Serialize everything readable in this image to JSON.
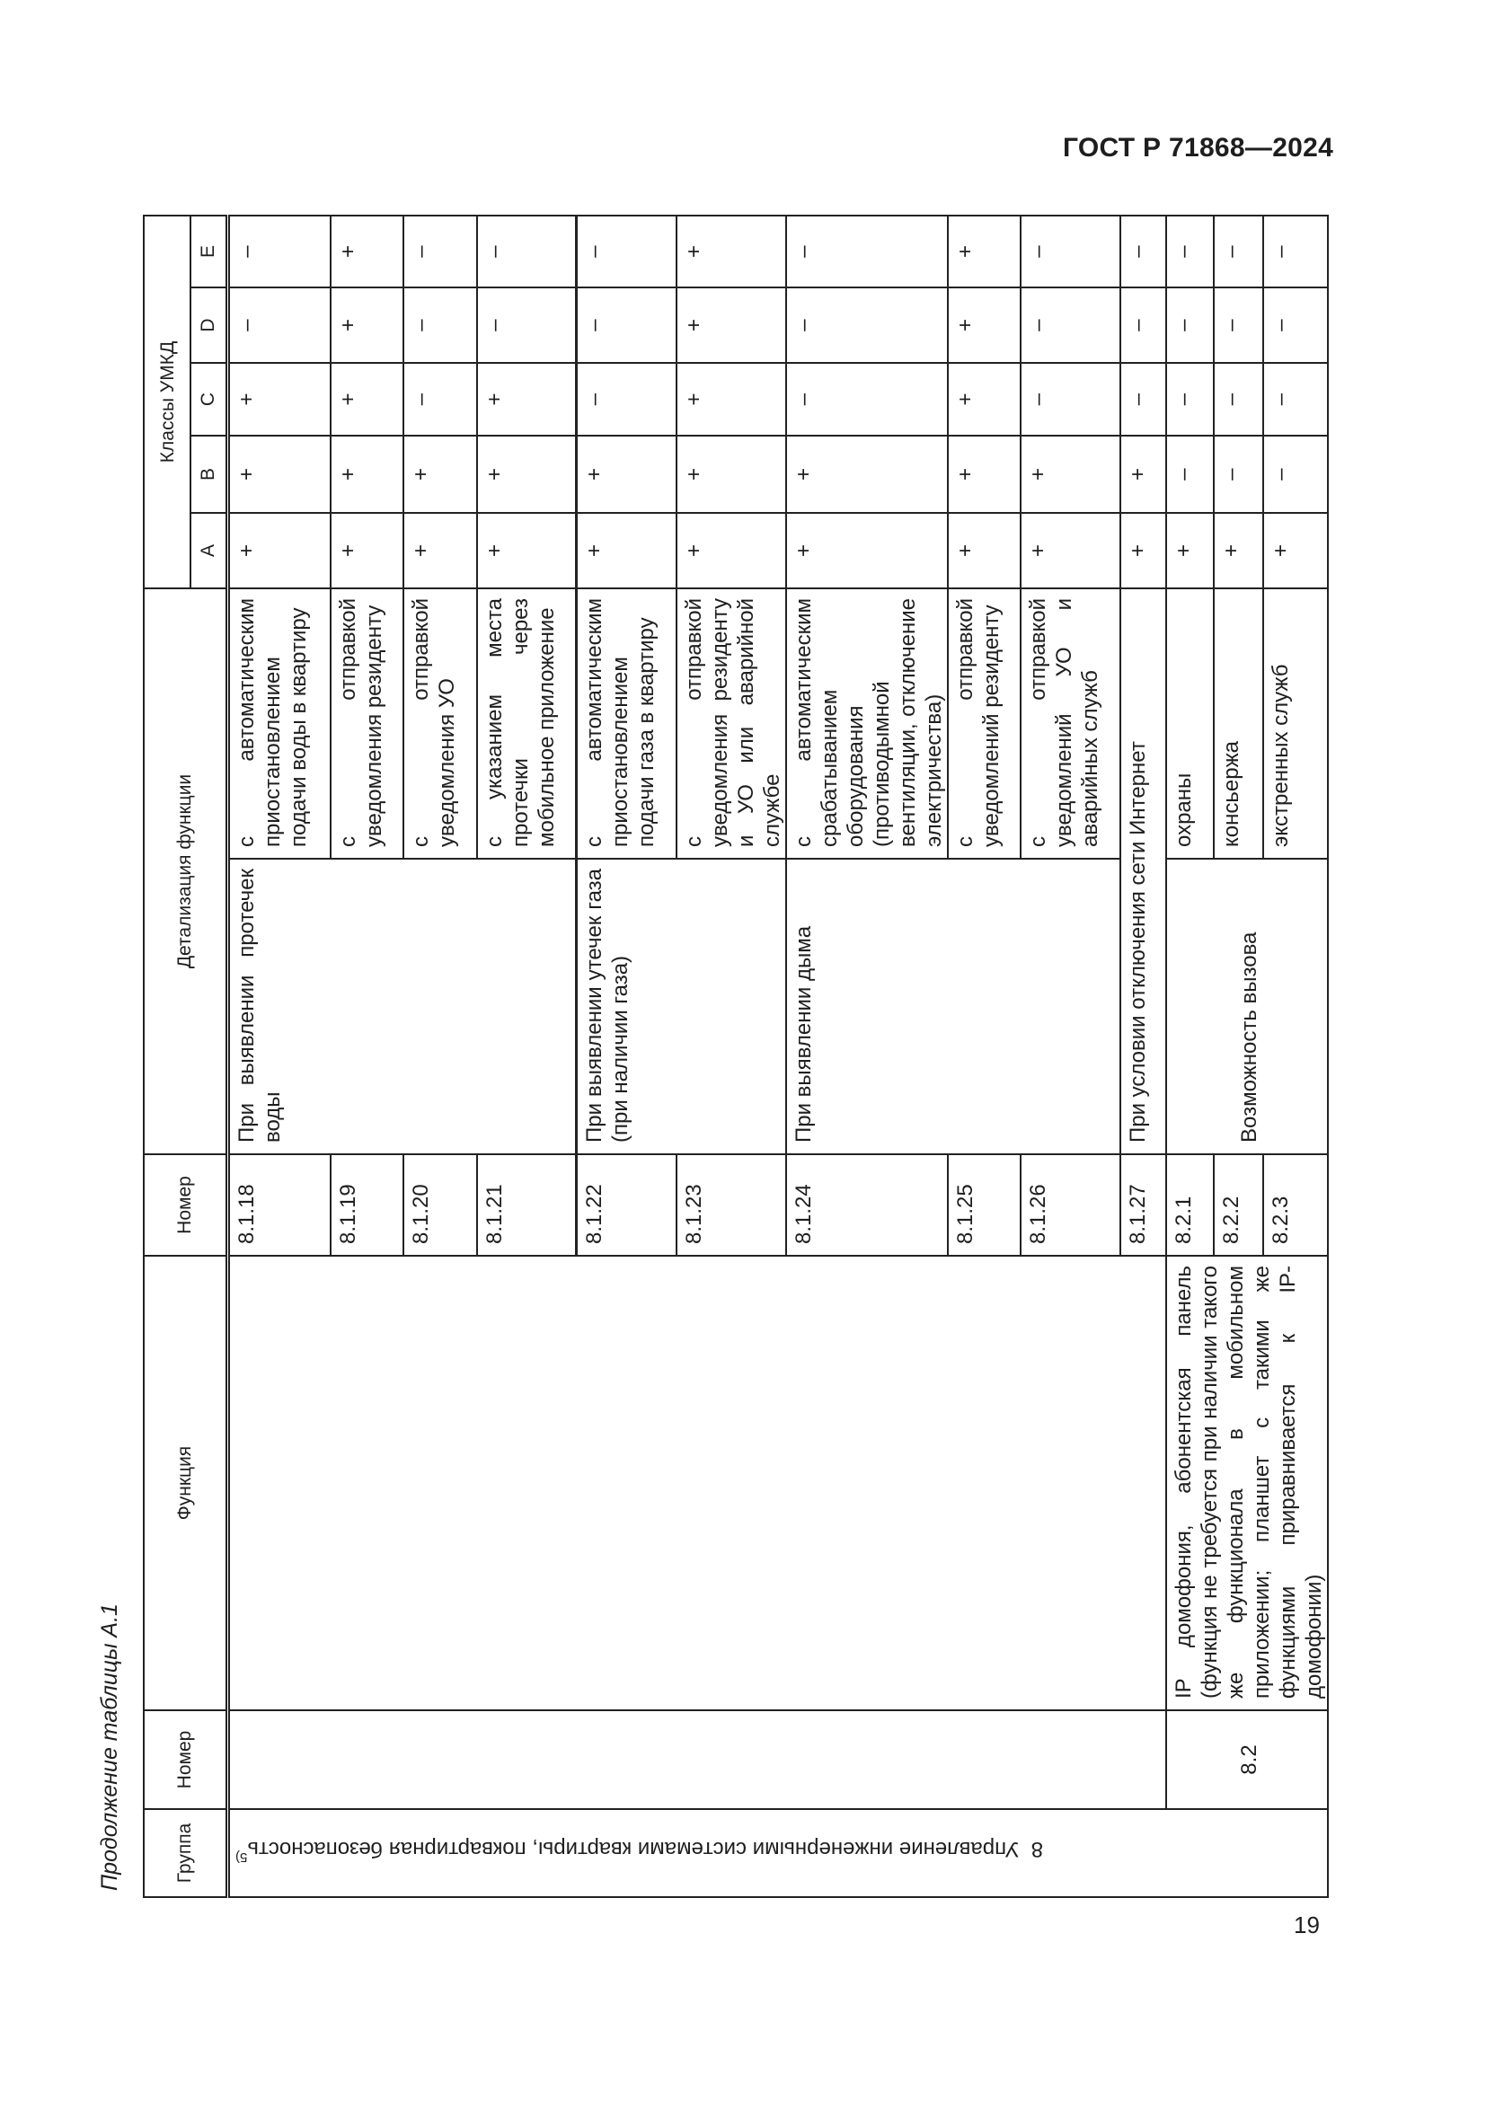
{
  "header": {
    "document_id": "ГОСТ Р 71868—2024"
  },
  "caption": "Продолжение таблицы А.1",
  "page_number": "19",
  "table": {
    "columns": {
      "group": "Группа",
      "number": "Номер",
      "function": "Функция",
      "sub_number": "Номер",
      "detail": "Детализация функции",
      "classes": "Классы УМКД",
      "class_letters": [
        "A",
        "B",
        "C",
        "D",
        "E"
      ]
    },
    "group": {
      "number": "8",
      "title": "Управление инженерными системами квартиры, поквартирная безопасность",
      "footnote": "5)"
    },
    "function_8_2": {
      "number": "8.2",
      "text": "IP домофония, абонентская панель (функция не требуется при наличии такого же функционала в мобильном приложении; планшет с такими же функциями приравнивается к IP-домофонии)"
    },
    "detail_groups": {
      "water": "При выявлении протечек воды",
      "gas": "При выявлении утечек газа (при наличии газа)",
      "smoke": "При выявлении дыма",
      "internet": "При условии отключения сети Интернет",
      "call": "Возможность вызова"
    },
    "rows": [
      {
        "number": "8.1.18",
        "detail": "с автоматическим приостановлением подачи воды в квартиру",
        "classes": [
          "+",
          "+",
          "+",
          "–",
          "–"
        ]
      },
      {
        "number": "8.1.19",
        "detail": "с отправкой уведомления резиденту",
        "classes": [
          "+",
          "+",
          "+",
          "+",
          "+"
        ]
      },
      {
        "number": "8.1.20",
        "detail": "с отправкой уведомления УО",
        "classes": [
          "+",
          "+",
          "–",
          "–",
          "–"
        ]
      },
      {
        "number": "8.1.21",
        "detail": "с указанием места протечки через мобильное приложение",
        "classes": [
          "+",
          "+",
          "+",
          "–",
          "–"
        ]
      },
      {
        "number": "8.1.22",
        "detail": "с автоматическим приостановлением подачи газа в квартиру",
        "classes": [
          "+",
          "+",
          "–",
          "–",
          "–"
        ]
      },
      {
        "number": "8.1.23",
        "detail": "с отправкой уведомления резиденту и УО или аварийной службе",
        "classes": [
          "+",
          "+",
          "+",
          "+",
          "+"
        ]
      },
      {
        "number": "8.1.24",
        "detail": "с автоматическим срабатыванием оборудования (противодымной вентиляции, отключение электричества)",
        "classes": [
          "+",
          "+",
          "–",
          "–",
          "–"
        ]
      },
      {
        "number": "8.1.25",
        "detail": "с отправкой уведомлений резиденту",
        "classes": [
          "+",
          "+",
          "+",
          "+",
          "+"
        ]
      },
      {
        "number": "8.1.26",
        "detail": "с отправкой уведомлений УО и аварийных служб",
        "classes": [
          "+",
          "+",
          "–",
          "–",
          "–"
        ]
      },
      {
        "number": "8.1.27",
        "detail": "",
        "classes": [
          "+",
          "+",
          "–",
          "–",
          "–"
        ]
      },
      {
        "number": "8.2.1",
        "detail": "охраны",
        "classes": [
          "+",
          "–",
          "–",
          "–",
          "–"
        ]
      },
      {
        "number": "8.2.2",
        "detail": "консьержа",
        "classes": [
          "+",
          "–",
          "–",
          "–",
          "–"
        ]
      },
      {
        "number": "8.2.3",
        "detail": "экстренных служб",
        "classes": [
          "+",
          "–",
          "–",
          "–",
          "–"
        ]
      }
    ]
  }
}
